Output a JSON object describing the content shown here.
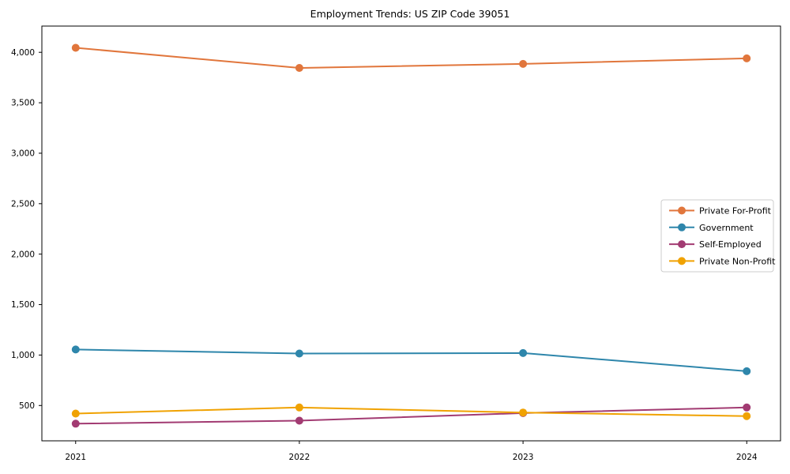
{
  "title": "Employment Trends: US ZIP Code 39051",
  "chart_data": {
    "type": "line",
    "x": [
      2021,
      2022,
      2023,
      2024
    ],
    "series": [
      {
        "name": "Private For-Profit",
        "color": "#E1763C",
        "values": [
          4045,
          3845,
          3885,
          3940
        ]
      },
      {
        "name": "Government",
        "color": "#2E86AB",
        "values": [
          1055,
          1015,
          1020,
          840
        ]
      },
      {
        "name": "Self-Employed",
        "color": "#A23B72",
        "values": [
          320,
          350,
          425,
          480
        ]
      },
      {
        "name": "Private Non-Profit",
        "color": "#F0A202",
        "values": [
          420,
          480,
          430,
          395
        ]
      }
    ],
    "title": "Employment Trends: US ZIP Code 39051",
    "xlabel": "",
    "ylabel": "",
    "xlim": [
      2020.849,
      2024.151
    ],
    "ylim": [
      150,
      4260
    ],
    "xticks": [
      2021,
      2022,
      2023,
      2024
    ],
    "yticks": [
      500,
      1000,
      1500,
      2000,
      2500,
      3000,
      3500,
      4000
    ],
    "grid": false,
    "legend_position": "center right",
    "marker": "circle"
  },
  "style": {
    "axis_color": "#000000",
    "tick_label_color": "#000000",
    "legend_border_color": "#cccccc",
    "background": "#ffffff"
  }
}
